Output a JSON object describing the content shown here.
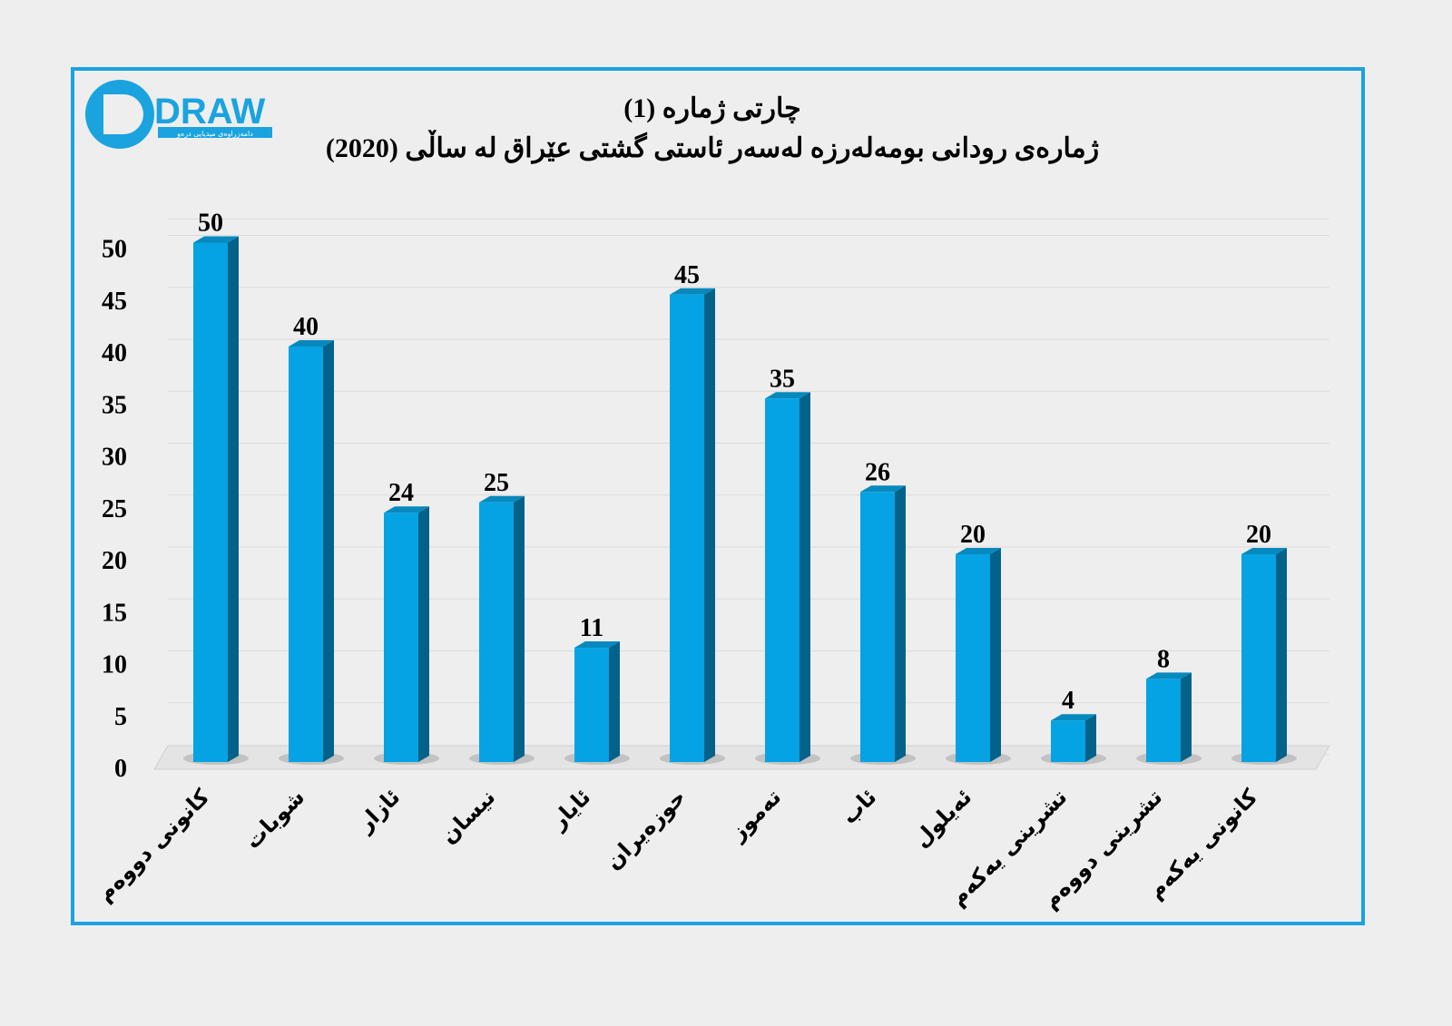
{
  "logo": {
    "wordmark": "DRAW",
    "tagline": "دامەزراوەی میدیایی درەو"
  },
  "colors": {
    "bar_front": "#05a3e3",
    "bar_side": "#03628a",
    "bar_top": "#0789bd",
    "frame": "#1aa3df"
  },
  "chart_data": {
    "type": "bar",
    "title": "چارتی ژمارە (1)",
    "subtitle": "ژمارەی رودانی بومەلەرزە لەسەر ئاستی گشتی عێراق لە ساڵی (2020)",
    "categories": [
      "کانونی دووەم",
      "شوبات",
      "ئازار",
      "نیسان",
      "ئایار",
      "حوزەیران",
      "تەموز",
      "ئاب",
      "ئەیلول",
      "تشرینی یەکەم",
      "تشرینی دووەم",
      "کانونی یەکەم"
    ],
    "values": [
      50,
      40,
      24,
      25,
      11,
      45,
      35,
      26,
      20,
      4,
      8,
      20
    ],
    "yticks": [
      0,
      5,
      10,
      15,
      20,
      25,
      30,
      35,
      40,
      45,
      50
    ],
    "ylim": [
      0,
      52
    ],
    "xlabel": "",
    "ylabel": "",
    "grid": true,
    "legend": "none"
  }
}
